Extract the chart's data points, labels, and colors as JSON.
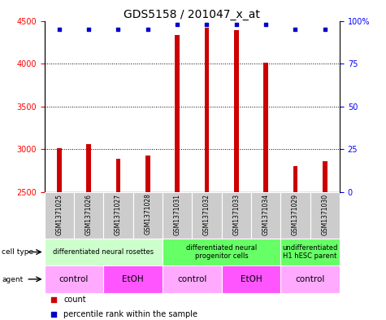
{
  "title": "GDS5158 / 201047_x_at",
  "samples": [
    "GSM1371025",
    "GSM1371026",
    "GSM1371027",
    "GSM1371028",
    "GSM1371031",
    "GSM1371032",
    "GSM1371033",
    "GSM1371034",
    "GSM1371029",
    "GSM1371030"
  ],
  "counts": [
    3010,
    3060,
    2890,
    2930,
    4330,
    4420,
    4390,
    4010,
    2800,
    2860
  ],
  "percentile_ranks": [
    95,
    95,
    95,
    95,
    98,
    98,
    98,
    98,
    95,
    95
  ],
  "ylim_left": [
    2500,
    4500
  ],
  "ylim_right": [
    0,
    100
  ],
  "yticks_left": [
    2500,
    3000,
    3500,
    4000,
    4500
  ],
  "yticks_right": [
    0,
    25,
    50,
    75,
    100
  ],
  "cell_type_groups": [
    {
      "label": "differentiated neural rosettes",
      "start": 0,
      "end": 4,
      "color": "#ccffcc"
    },
    {
      "label": "differentiated neural\nprogenitor cells",
      "start": 4,
      "end": 8,
      "color": "#66ff66"
    },
    {
      "label": "undifferentiated\nH1 hESC parent",
      "start": 8,
      "end": 10,
      "color": "#66ff66"
    }
  ],
  "agent_groups": [
    {
      "label": "control",
      "start": 0,
      "end": 2,
      "color": "#ffaaff"
    },
    {
      "label": "EtOH",
      "start": 2,
      "end": 4,
      "color": "#ff55ff"
    },
    {
      "label": "control",
      "start": 4,
      "end": 6,
      "color": "#ffaaff"
    },
    {
      "label": "EtOH",
      "start": 6,
      "end": 8,
      "color": "#ff55ff"
    },
    {
      "label": "control",
      "start": 8,
      "end": 10,
      "color": "#ffaaff"
    }
  ],
  "bar_color": "#cc0000",
  "dot_color": "#0000cc",
  "bar_bottom": 2500,
  "bar_width": 0.15,
  "grid_color": "#000000",
  "sample_box_color": "#cccccc",
  "title_fontsize": 10,
  "tick_fontsize": 7,
  "sample_fontsize": 5.5,
  "cell_fontsize": 6,
  "agent_fontsize": 7.5,
  "legend_fontsize": 7
}
